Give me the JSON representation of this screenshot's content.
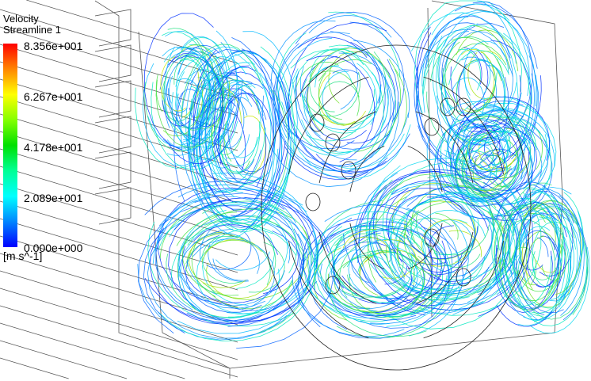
{
  "legend": {
    "title": "Velocity",
    "subtitle": "Streamline 1",
    "ticks": [
      "8.356e+001",
      "6.267e+001",
      "4.178e+001",
      "2.089e+001",
      "0.000e+000"
    ],
    "unit": "[m s^-1]",
    "range": [
      0,
      83.56
    ],
    "colormap": [
      "#0000ff",
      "#0080ff",
      "#00ffff",
      "#00ff90",
      "#00e000",
      "#80ff00",
      "#ffff00",
      "#ff8000",
      "#ff0000"
    ]
  },
  "view": {
    "background": "#ffffff",
    "wireframe_color": "#555555"
  }
}
